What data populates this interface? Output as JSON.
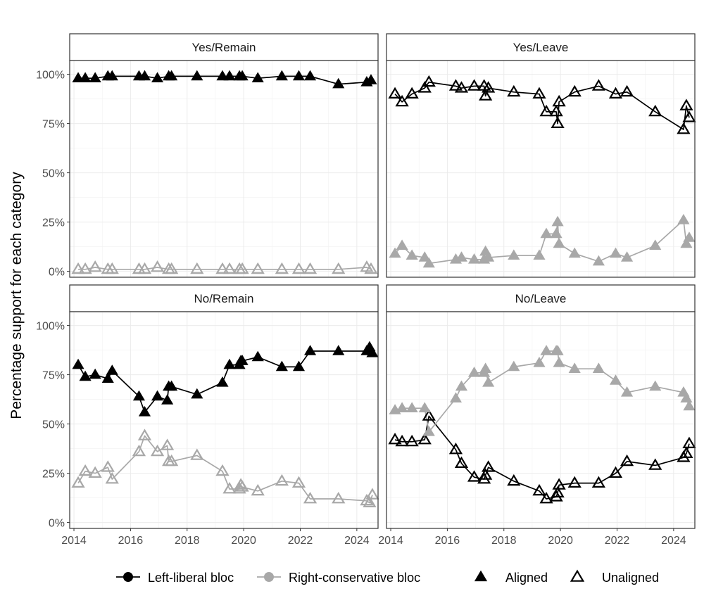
{
  "chart_data": {
    "type": "line",
    "ylabel": "Percentage support for each category",
    "xlim": [
      2013.85,
      2024.75
    ],
    "ylim": [
      -3,
      107
    ],
    "x_ticks": [
      2014,
      2016,
      2018,
      2020,
      2022,
      2024
    ],
    "x_tick_labels": [
      "2014",
      "2016",
      "2018",
      "2020",
      "2022",
      "2024"
    ],
    "y_ticks": [
      0,
      25,
      50,
      75,
      100
    ],
    "y_tick_labels": [
      "0%",
      "25%",
      "50%",
      "75%",
      "100%"
    ],
    "grid": true,
    "legend": {
      "position": "bottom",
      "items": [
        {
          "label": "Left-liberal bloc",
          "kind": "line",
          "color": "#000000"
        },
        {
          "label": "Right-conservative bloc",
          "kind": "line",
          "color": "#a8a8a8"
        },
        {
          "label": "Aligned",
          "kind": "shape",
          "shape": "filled-triangle"
        },
        {
          "label": "Unaligned",
          "kind": "shape",
          "shape": "open-triangle"
        }
      ]
    },
    "bloc_colors": {
      "left": "#000000",
      "right": "#a8a8a8"
    },
    "panels": [
      {
        "title": "Yes/Remain",
        "series": [
          {
            "name": "Left-liberal bloc",
            "color": "#000000",
            "shape": "aligned",
            "x": [
              2014.15,
              2014.4,
              2014.75,
              2015.2,
              2015.35,
              2016.3,
              2016.5,
              2016.95,
              2017.35,
              2017.45,
              2018.35,
              2019.25,
              2019.5,
              2019.85,
              2019.95,
              2020.5,
              2021.35,
              2021.95,
              2022.35,
              2023.35,
              2024.35,
              2024.5
            ],
            "y": [
              98,
              98,
              98,
              99,
              99,
              99,
              99,
              98,
              99,
              99,
              99,
              99,
              99,
              99,
              99,
              98,
              99,
              99,
              99,
              95,
              96,
              97
            ]
          },
          {
            "name": "Right-conservative bloc",
            "color": "#a8a8a8",
            "shape": "unaligned",
            "x": [
              2014.15,
              2014.4,
              2014.75,
              2015.2,
              2015.35,
              2016.3,
              2016.5,
              2016.95,
              2017.35,
              2017.45,
              2018.35,
              2019.25,
              2019.5,
              2019.85,
              2019.95,
              2020.5,
              2021.35,
              2021.95,
              2022.35,
              2023.35,
              2024.35,
              2024.5
            ],
            "y": [
              1,
              1,
              2,
              1,
              1,
              1,
              1,
              2,
              1,
              1,
              1,
              1,
              1,
              1,
              1,
              1,
              1,
              1,
              1,
              1,
              2,
              1
            ]
          }
        ]
      },
      {
        "title": "Yes/Leave",
        "series": [
          {
            "name": "Left-liberal bloc",
            "color": "#000000",
            "shape": "unaligned",
            "x": [
              2014.15,
              2014.4,
              2014.75,
              2015.2,
              2015.35,
              2016.3,
              2016.5,
              2016.95,
              2017.3,
              2017.35,
              2017.45,
              2018.35,
              2019.25,
              2019.5,
              2019.85,
              2019.9,
              2019.95,
              2020.5,
              2021.35,
              2021.95,
              2022.35,
              2023.35,
              2024.35,
              2024.45,
              2024.55
            ],
            "y": [
              90,
              86,
              90,
              93,
              96,
              94,
              93,
              94,
              94,
              89,
              93,
              91,
              90,
              81,
              81,
              75,
              86,
              91,
              94,
              90,
              91,
              81,
              72,
              84,
              78
            ]
          },
          {
            "name": "Right-conservative bloc",
            "color": "#a8a8a8",
            "shape": "aligned",
            "x": [
              2014.15,
              2014.4,
              2014.75,
              2015.2,
              2015.35,
              2016.3,
              2016.5,
              2016.95,
              2017.3,
              2017.35,
              2017.45,
              2018.35,
              2019.25,
              2019.5,
              2019.85,
              2019.9,
              2019.95,
              2020.5,
              2021.35,
              2021.95,
              2022.35,
              2023.35,
              2024.35,
              2024.45,
              2024.55
            ],
            "y": [
              9,
              13,
              8,
              7,
              4,
              6,
              7,
              6,
              6,
              10,
              7,
              8,
              8,
              19,
              19,
              25,
              14,
              9,
              5,
              9,
              7,
              13,
              26,
              14,
              17
            ]
          }
        ]
      },
      {
        "title": "No/Remain",
        "series": [
          {
            "name": "Left-liberal bloc",
            "color": "#000000",
            "shape": "aligned",
            "x": [
              2014.15,
              2014.4,
              2014.75,
              2015.2,
              2015.35,
              2016.3,
              2016.5,
              2016.95,
              2017.3,
              2017.35,
              2017.45,
              2018.35,
              2019.25,
              2019.5,
              2019.85,
              2019.9,
              2019.95,
              2020.5,
              2021.35,
              2021.95,
              2022.35,
              2023.35,
              2024.35,
              2024.45,
              2024.55
            ],
            "y": [
              80,
              74,
              75,
              73,
              77,
              64,
              56,
              64,
              62,
              69,
              69,
              65,
              71,
              80,
              80,
              82,
              82,
              84,
              79,
              79,
              87,
              87,
              87,
              89,
              86
            ]
          },
          {
            "name": "Right-conservative bloc",
            "color": "#a8a8a8",
            "shape": "unaligned",
            "x": [
              2014.15,
              2014.4,
              2014.75,
              2015.2,
              2015.35,
              2016.3,
              2016.5,
              2016.95,
              2017.3,
              2017.35,
              2017.45,
              2018.35,
              2019.25,
              2019.5,
              2019.85,
              2019.9,
              2019.95,
              2020.5,
              2021.35,
              2021.95,
              2022.35,
              2023.35,
              2024.35,
              2024.45,
              2024.55
            ],
            "y": [
              20,
              26,
              25,
              28,
              22,
              36,
              44,
              36,
              39,
              31,
              31,
              34,
              26,
              17,
              17,
              19,
              18,
              16,
              21,
              20,
              12,
              12,
              11,
              10,
              14
            ]
          }
        ]
      },
      {
        "title": "No/Leave",
        "series": [
          {
            "name": "Left-liberal bloc",
            "color": "#000000",
            "shape": "unaligned",
            "x": [
              2014.15,
              2014.4,
              2014.75,
              2015.2,
              2015.35,
              2016.3,
              2016.5,
              2016.95,
              2017.3,
              2017.35,
              2017.45,
              2018.35,
              2019.25,
              2019.5,
              2019.85,
              2019.9,
              2019.95,
              2020.5,
              2021.35,
              2021.95,
              2022.35,
              2023.35,
              2024.35,
              2024.45,
              2024.55
            ],
            "y": [
              42,
              41,
              41,
              42,
              54,
              37,
              30,
              23,
              22,
              24,
              28,
              21,
              16,
              12,
              13,
              15,
              19,
              20,
              20,
              25,
              31,
              29,
              33,
              35,
              40
            ]
          },
          {
            "name": "Right-conservative bloc",
            "color": "#a8a8a8",
            "shape": "aligned",
            "x": [
              2014.15,
              2014.4,
              2014.75,
              2015.2,
              2015.35,
              2016.3,
              2016.5,
              2016.95,
              2017.3,
              2017.35,
              2017.45,
              2018.35,
              2019.25,
              2019.5,
              2019.85,
              2019.9,
              2019.95,
              2020.5,
              2021.35,
              2021.95,
              2022.35,
              2023.35,
              2024.35,
              2024.45,
              2024.55
            ],
            "y": [
              57,
              58,
              58,
              58,
              46,
              63,
              69,
              76,
              76,
              78,
              71,
              79,
              81,
              87,
              87,
              87,
              81,
              78,
              78,
              72,
              66,
              69,
              66,
              63,
              59
            ]
          }
        ]
      }
    ]
  }
}
